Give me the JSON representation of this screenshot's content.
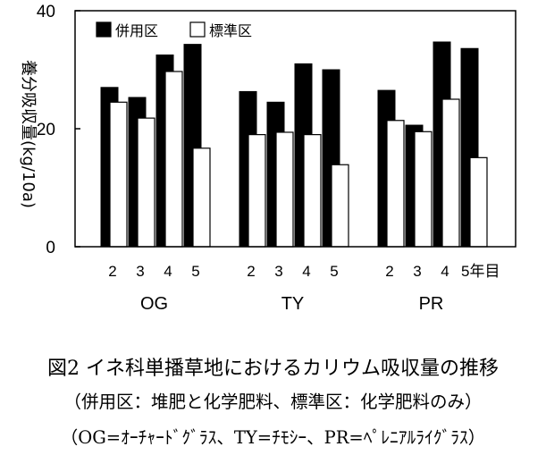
{
  "chart_data": {
    "type": "bar",
    "ylabel": "養分吸収量(kg/10a)",
    "ylim": [
      0,
      40
    ],
    "yticks": [
      0,
      20,
      40
    ],
    "grid": false,
    "legend_position": "top-left",
    "year_suffix": "年目",
    "groups": [
      {
        "name": "OG",
        "categories": [
          "2",
          "3",
          "4",
          "5"
        ]
      },
      {
        "name": "TY",
        "categories": [
          "2",
          "3",
          "4",
          "5"
        ]
      },
      {
        "name": "PR",
        "categories": [
          "2",
          "3",
          "4",
          "5"
        ]
      }
    ],
    "series": [
      {
        "name": "併用区",
        "color": "#000000",
        "values": [
          27.0,
          25.3,
          32.5,
          34.3,
          26.3,
          24.5,
          31.0,
          30.0,
          26.5,
          20.6,
          34.7,
          33.6
        ]
      },
      {
        "name": "標準区",
        "color": "#ffffff",
        "values": [
          24.5,
          21.8,
          29.7,
          16.7,
          19.0,
          19.4,
          19.0,
          13.9,
          21.4,
          19.5,
          25.0,
          15.1
        ]
      }
    ]
  },
  "caption": {
    "title": "図2 イネ科単播草地におけるカリウム吸収量の推移",
    "note1": "（併用区：堆肥と化学肥料、標準区：化学肥料のみ）",
    "note2": "（OG=ｵｰﾁｬｰﾄﾞｸﾞﾗｽ、TY=ﾁﾓｼｰ、PR=ﾍﾟﾚﾆｱﾙﾗｲｸﾞﾗｽ）"
  }
}
